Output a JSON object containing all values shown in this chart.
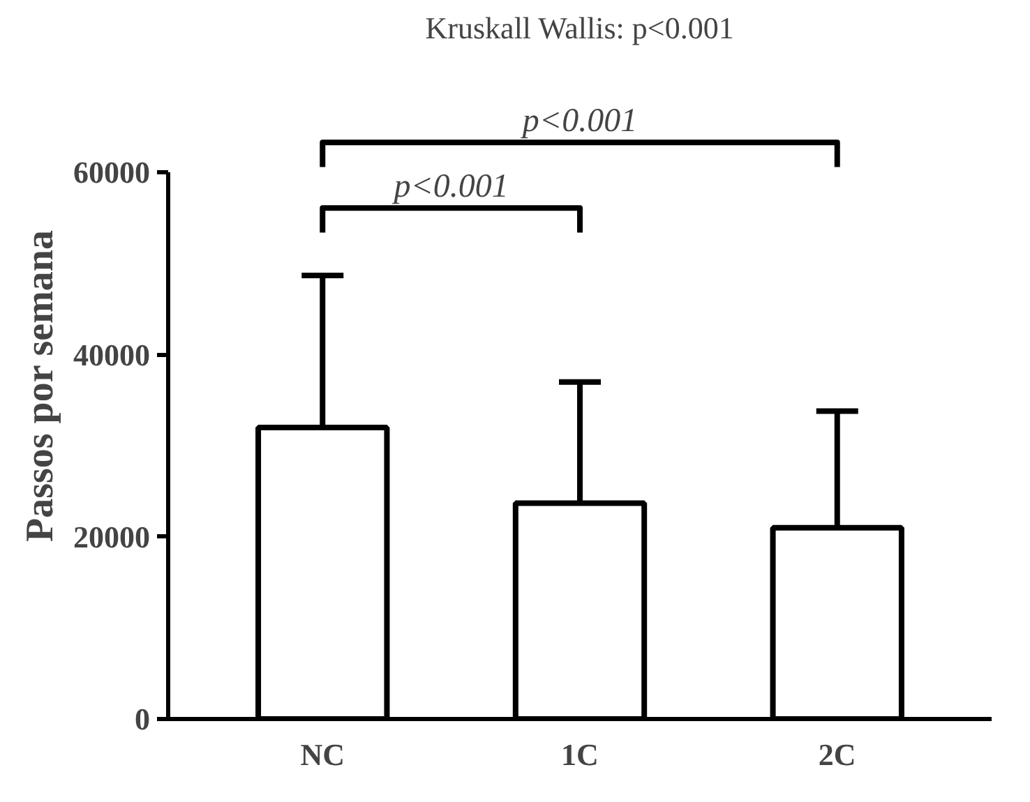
{
  "chart_data": {
    "type": "bar",
    "title": "Kruskall Wallis: p<0.001",
    "ylabel": "Passos por semana",
    "categories": [
      "NC",
      "1C",
      "2C"
    ],
    "values": [
      32000,
      23700,
      21000
    ],
    "errors": [
      [
        32000,
        48700
      ],
      [
        23700,
        37000
      ],
      [
        21000,
        33800
      ]
    ],
    "color": "#ffffff",
    "ylim": [
      0,
      60000
    ],
    "yticks": [
      0,
      20000,
      40000,
      60000
    ],
    "grid": false,
    "annotations": [
      "p<0.001",
      "p<0.001"
    ]
  }
}
